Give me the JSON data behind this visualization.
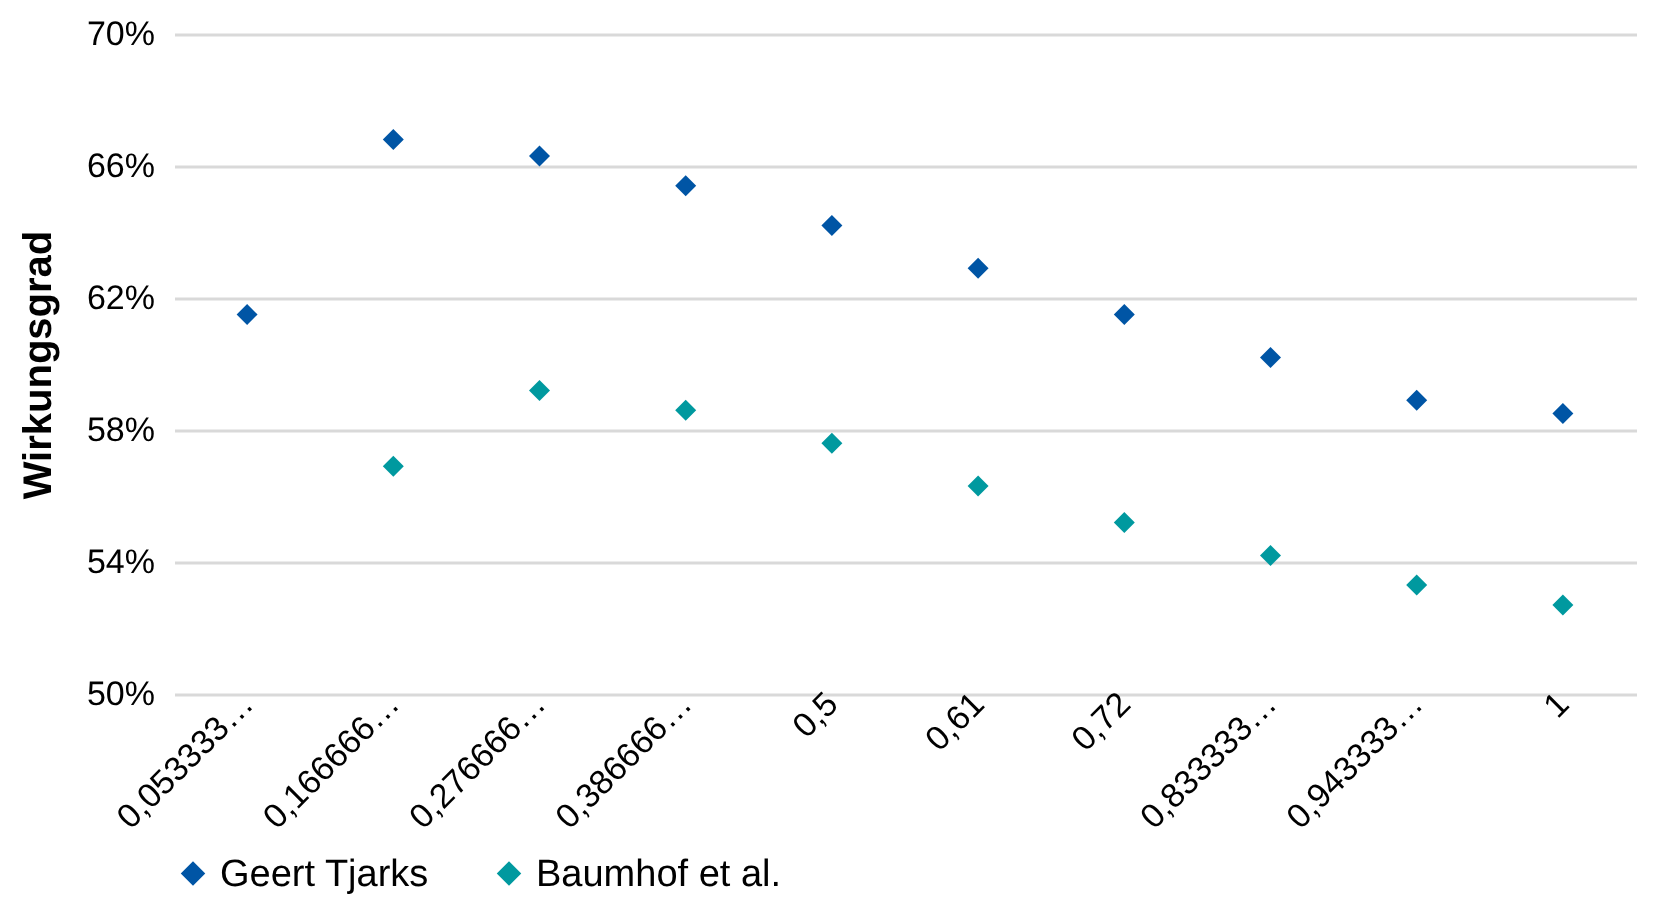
{
  "chart_data": {
    "type": "scatter",
    "ylabel": "Wirkungsgrad",
    "categories": [
      "0,053333…",
      "0,166666…",
      "0,276666…",
      "0,386666…",
      "0,5",
      "0,61",
      "0,72",
      "0,833333…",
      "0,943333…",
      "1"
    ],
    "series": [
      {
        "name": "Geert Tjarks",
        "color": "#0055a5",
        "values": [
          61.5,
          66.8,
          66.3,
          65.4,
          64.2,
          62.9,
          61.5,
          60.2,
          58.9,
          58.5
        ]
      },
      {
        "name": "Baumhof et al.",
        "color": "#00999f",
        "values": [
          null,
          56.9,
          59.2,
          58.6,
          57.6,
          56.3,
          55.2,
          54.2,
          53.3,
          52.7
        ]
      }
    ],
    "ylim": [
      50,
      70
    ],
    "yticks": [
      {
        "value": 50,
        "label": "50%"
      },
      {
        "value": 54,
        "label": "54%"
      },
      {
        "value": 58,
        "label": "58%"
      },
      {
        "value": 62,
        "label": "62%"
      },
      {
        "value": 66,
        "label": "66%"
      },
      {
        "value": 70,
        "label": "70%"
      }
    ],
    "grid": "y",
    "legend": "bottom",
    "marker": "diamond"
  }
}
